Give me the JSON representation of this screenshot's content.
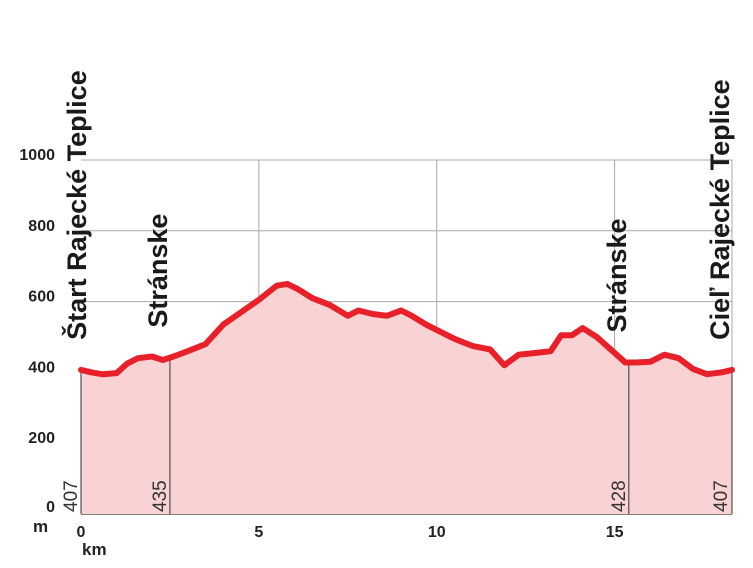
{
  "chart_data": {
    "type": "area",
    "xlabel": "km",
    "ylabel": "m",
    "xlim": [
      0,
      18.3
    ],
    "ylim": [
      0,
      1000
    ],
    "x_ticks": [
      "0",
      "5",
      "10",
      "15"
    ],
    "y_ticks": [
      "0",
      "200",
      "400",
      "600",
      "800",
      "1000"
    ],
    "grid": true,
    "line_color": "#e8202a",
    "fill_color": "#f9d3d3",
    "series": [
      {
        "x": [
          0,
          0.3,
          0.6,
          1.0,
          1.3,
          1.6,
          2.0,
          2.3,
          2.6,
          3.0,
          3.5,
          4.0,
          4.5,
          5.0,
          5.5,
          5.8,
          6.1,
          6.5,
          7.0,
          7.5,
          7.8,
          8.2,
          8.6,
          9.0,
          9.3,
          9.7,
          10.0,
          10.5,
          11.0,
          11.5,
          11.9,
          12.3,
          12.8,
          13.2,
          13.5,
          13.8,
          14.1,
          14.5,
          15.0,
          15.3,
          15.6,
          16.0,
          16.4,
          16.8,
          17.2,
          17.6,
          18.0,
          18.3
        ],
        "y": [
          407,
          400,
          395,
          398,
          425,
          440,
          445,
          435,
          445,
          460,
          480,
          535,
          570,
          605,
          645,
          650,
          635,
          610,
          590,
          560,
          575,
          565,
          560,
          575,
          560,
          535,
          520,
          495,
          475,
          465,
          420,
          450,
          455,
          460,
          505,
          505,
          525,
          500,
          455,
          428,
          428,
          430,
          450,
          440,
          410,
          395,
          400,
          407
        ]
      }
    ],
    "waypoints": [
      {
        "km": 0,
        "name": "Štart Rajecké Teplice",
        "alt": "407"
      },
      {
        "km": 2.5,
        "name": "Stránske",
        "alt": "435"
      },
      {
        "km": 15.4,
        "name": "Stránske",
        "alt": "428"
      },
      {
        "km": 18.3,
        "name": "Cieľ Rajecké Teplice",
        "alt": "407"
      }
    ]
  }
}
